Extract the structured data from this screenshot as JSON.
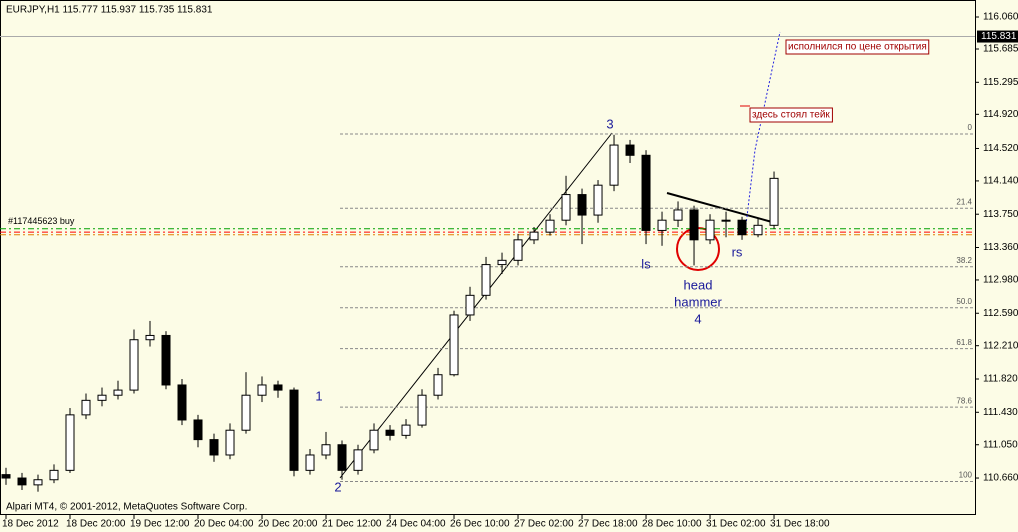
{
  "chart_data": {
    "type": "candlestick",
    "symbol_info": "EURJPY,H1  115.777 115.937 115.735 115.831",
    "copyright": "Alpari MT4, © 2001-2012, MetaQuotes Software Corp.",
    "color": "#000000",
    "open": [
      110.7,
      110.66,
      110.58,
      110.64,
      110.75,
      111.4,
      111.57,
      111.63,
      111.69,
      112.28,
      112.33,
      111.75,
      111.34,
      111.11,
      110.93,
      111.22,
      111.63,
      111.75,
      111.69,
      110.75,
      110.93,
      111.05,
      110.75,
      110.99,
      111.22,
      111.16,
      111.28,
      111.63,
      111.87,
      112.57,
      112.8,
      113.16,
      113.21,
      113.45,
      113.54,
      113.68,
      113.98,
      113.74,
      114.09,
      114.56,
      114.44,
      113.56,
      113.68,
      113.8,
      113.45,
      113.68,
      113.68,
      113.51,
      113.62
    ],
    "high": [
      110.78,
      110.72,
      110.7,
      110.82,
      111.48,
      111.65,
      111.72,
      111.8,
      112.4,
      112.5,
      112.38,
      111.82,
      111.4,
      111.18,
      111.3,
      111.9,
      111.85,
      111.8,
      111.72,
      111.0,
      111.2,
      111.1,
      111.05,
      111.3,
      111.28,
      111.35,
      111.7,
      111.95,
      112.62,
      112.9,
      113.25,
      113.3,
      113.52,
      113.6,
      113.75,
      114.2,
      114.05,
      114.15,
      114.68,
      114.62,
      114.5,
      113.78,
      113.9,
      113.85,
      113.75,
      113.78,
      113.72,
      113.7,
      114.25
    ],
    "low": [
      110.58,
      110.52,
      110.5,
      110.6,
      110.72,
      111.35,
      111.5,
      111.58,
      111.65,
      112.2,
      111.7,
      111.28,
      111.02,
      110.85,
      110.88,
      111.18,
      111.55,
      111.6,
      110.68,
      110.7,
      110.88,
      110.64,
      110.7,
      110.95,
      111.1,
      111.12,
      111.25,
      111.58,
      111.85,
      112.5,
      112.75,
      113.05,
      113.15,
      113.4,
      113.5,
      113.62,
      113.4,
      113.65,
      114.02,
      114.35,
      113.4,
      113.38,
      113.6,
      113.15,
      113.4,
      113.48,
      113.45,
      113.48,
      113.58
    ],
    "close": [
      110.66,
      110.58,
      110.64,
      110.75,
      111.4,
      111.57,
      111.63,
      111.69,
      112.28,
      112.33,
      111.75,
      111.34,
      111.11,
      110.93,
      111.22,
      111.63,
      111.75,
      111.69,
      110.75,
      110.93,
      111.05,
      110.75,
      110.99,
      111.22,
      111.16,
      111.28,
      111.63,
      111.87,
      112.57,
      112.8,
      113.16,
      113.21,
      113.45,
      113.54,
      113.68,
      113.98,
      113.74,
      114.09,
      114.56,
      114.44,
      113.56,
      113.68,
      113.8,
      113.45,
      113.68,
      113.68,
      113.51,
      113.62,
      114.17
    ],
    "xlim": [
      -0.375,
      60.56
    ],
    "xticks": [
      {
        "value": 0,
        "label": "18 Dec 2012"
      },
      {
        "value": 4,
        "label": "18 Dec 20:00"
      },
      {
        "value": 8,
        "label": "19 Dec 12:00"
      },
      {
        "value": 12,
        "label": "20 Dec 04:00"
      },
      {
        "value": 16,
        "label": "20 Dec 20:00"
      },
      {
        "value": 20,
        "label": "21 Dec 12:00"
      },
      {
        "value": 24,
        "label": "24 Dec 04:00"
      },
      {
        "value": 28,
        "label": "26 Dec 10:00"
      },
      {
        "value": 32,
        "label": "27 Dec 02:00"
      },
      {
        "value": 36,
        "label": "27 Dec 18:00"
      },
      {
        "value": 40,
        "label": "28 Dec 10:00"
      },
      {
        "value": 44,
        "label": "31 Dec 02:00"
      },
      {
        "value": 48,
        "label": "31 Dec 18:00"
      }
    ],
    "ylim": [
      110.227,
      116.259
    ],
    "yticks": [
      {
        "value": 116.06,
        "label": "116.060"
      },
      {
        "value": 115.685,
        "label": "115.685"
      },
      {
        "value": 115.295,
        "label": "115.295"
      },
      {
        "value": 114.92,
        "label": "114.920"
      },
      {
        "value": 114.52,
        "label": "114.520"
      },
      {
        "value": 114.14,
        "label": "114.140"
      },
      {
        "value": 113.75,
        "label": "113.750"
      },
      {
        "value": 113.36,
        "label": "113.360"
      },
      {
        "value": 112.98,
        "label": "112.980"
      },
      {
        "value": 112.59,
        "label": "112.590"
      },
      {
        "value": 112.21,
        "label": "112.210"
      },
      {
        "value": 111.82,
        "label": "111.820"
      },
      {
        "value": 111.43,
        "label": "111.430"
      },
      {
        "value": 111.05,
        "label": "111.050"
      },
      {
        "value": 110.66,
        "label": "110.660"
      }
    ],
    "current_price": 115.831,
    "fib_levels": [
      {
        "value": 114.69,
        "label": "0"
      },
      {
        "value": 113.82,
        "label": "21.4"
      },
      {
        "value": 113.135,
        "label": "38.2"
      },
      {
        "value": 112.655,
        "label": "50.0"
      },
      {
        "value": 112.175,
        "label": "61.8"
      },
      {
        "value": 111.49,
        "label": "78.6"
      },
      {
        "value": 110.62,
        "label": "100"
      }
    ],
    "order": {
      "label": "#117445623 buy",
      "lines": [
        {
          "price": 113.58,
          "color": "#00a000"
        },
        {
          "price": 113.54,
          "color": "#ff0000"
        },
        {
          "price": 113.51,
          "color": "#e08000"
        }
      ]
    },
    "annotations": [
      {
        "text": "1"
      },
      {
        "text": "2"
      },
      {
        "text": "3"
      },
      {
        "text": "ls"
      },
      {
        "text": "rs"
      },
      {
        "text": "head"
      },
      {
        "text": "hammer"
      },
      {
        "text": "4"
      }
    ],
    "notes": [
      {
        "text": "исполнился по цене открытия"
      },
      {
        "text": "здесь стоял тейк"
      }
    ]
  }
}
